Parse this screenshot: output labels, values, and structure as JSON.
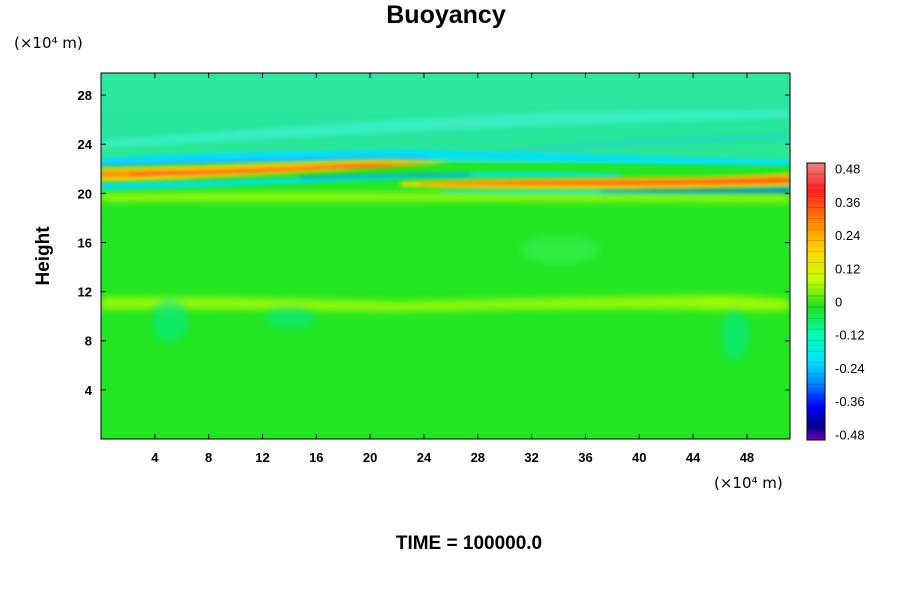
{
  "chart_data": {
    "type": "heatmap",
    "title": "Buoyancy",
    "ylabel": "Height",
    "y_unit": "(×10⁴ m)",
    "x_unit": "(×10⁴ m)",
    "x_ticks": [
      "4",
      "8",
      "12",
      "16",
      "20",
      "24",
      "28",
      "32",
      "36",
      "40",
      "44",
      "48"
    ],
    "y_ticks": [
      "4",
      "8",
      "12",
      "16",
      "20",
      "24",
      "28"
    ],
    "xlim": [
      0,
      51.2
    ],
    "ylim": [
      0,
      29.8
    ],
    "colorbar": {
      "ticks": [
        "0.48",
        "0.36",
        "0.24",
        "0.12",
        "0",
        "-0.12",
        "-0.24",
        "-0.36",
        "-0.48"
      ],
      "range": [
        -0.5,
        0.5
      ],
      "colors": [
        "#f08080",
        "#ff2020",
        "#ff8c00",
        "#ffd700",
        "#c8ff00",
        "#20e020",
        "#00ffb0",
        "#00e0ff",
        "#0080ff",
        "#0000ff",
        "#000090",
        "#7000b0"
      ]
    },
    "field_features": [
      {
        "feature": "positive band",
        "x_range": [
          0,
          23
        ],
        "y": 21.7,
        "peak": 0.4
      },
      {
        "feature": "positive band",
        "x_range": [
          24,
          51.2
        ],
        "y": 20.9,
        "peak": 0.38
      },
      {
        "feature": "negative band",
        "x_range": [
          0,
          24
        ],
        "y": 20.9,
        "peak": -0.25
      },
      {
        "feature": "negative band",
        "x_range": [
          33,
          51.2
        ],
        "y": 20.3,
        "peak": -0.38
      },
      {
        "feature": "weak positive band",
        "x_range": [
          0,
          51.2
        ],
        "y": 11.0,
        "peak": 0.1
      },
      {
        "feature": "weak positive band",
        "x_range": [
          0,
          51.2
        ],
        "y": 19.8,
        "peak": 0.1
      },
      {
        "feature": "weak negative layer",
        "x_range": [
          0,
          51.2
        ],
        "y_range": [
          22.5,
          29.8
        ],
        "peak": -0.08
      }
    ]
  },
  "footer": {
    "time_label": "TIME = 100000.0"
  }
}
